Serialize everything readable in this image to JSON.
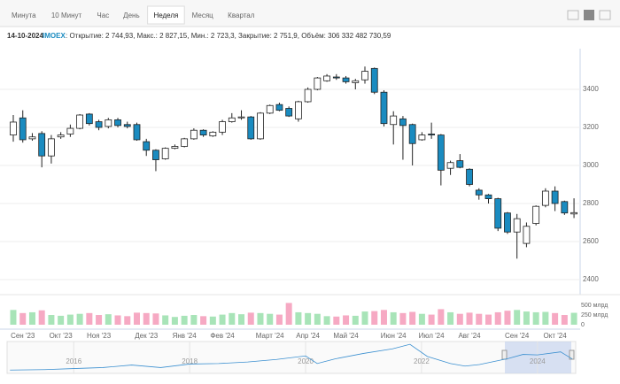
{
  "tabs": [
    "Минута",
    "10 Минут",
    "Час",
    "День",
    "Неделя",
    "Месяц",
    "Квартал"
  ],
  "selected_tab": 4,
  "info": {
    "date": "14-10-2024",
    "ticker": "IMOEX",
    "text": ": Открытие: 2 744,93, Макс.: 2 827,15, Мин.: 2 723,3, Закрытие: 2 751,9, Объём: 306 332 482 730,59"
  },
  "chart_data": [
    {
      "type": "candlestick",
      "categories": [
        null,
        "Сен '23",
        null,
        null,
        null,
        "Окт '23",
        null,
        null,
        null,
        "Ноя '23",
        null,
        null,
        null,
        null,
        "Дек '23",
        null,
        null,
        null,
        "Янв '24",
        null,
        null,
        null,
        "Фев '24",
        null,
        null,
        null,
        null,
        "Март '24",
        null,
        null,
        null,
        "Апр '24",
        null,
        null,
        null,
        "Май '24",
        null,
        null,
        null,
        null,
        "Июн '24",
        null,
        null,
        null,
        "Июл '24",
        null,
        null,
        null,
        "Авг '24",
        null,
        null,
        null,
        null,
        "Сен '24",
        null,
        null,
        null,
        "Окт '24",
        null,
        null
      ],
      "open": [
        3160,
        3250,
        3140,
        3168,
        3050,
        3150,
        3165,
        3195,
        3270,
        3230,
        3205,
        3240,
        3215,
        3215,
        3125,
        3080,
        3035,
        3090,
        3100,
        3140,
        3185,
        3155,
        3175,
        3230,
        3250,
        3255,
        3140,
        3275,
        3320,
        3300,
        3245,
        3335,
        3400,
        3445,
        3465,
        3460,
        3435,
        3450,
        3510,
        3385,
        3215,
        3245,
        3215,
        3135,
        3165,
        3160,
        2985,
        3025,
        2980,
        2870,
        2845,
        2825,
        2750,
        2650,
        2590,
        2695,
        2790,
        2865,
        2810,
        2744.93
      ],
      "high": [
        3265,
        3290,
        3170,
        3180,
        3160,
        3175,
        3215,
        3270,
        3275,
        3240,
        3250,
        3250,
        3230,
        3225,
        3140,
        3085,
        3095,
        3110,
        3145,
        3195,
        3190,
        3180,
        3240,
        3275,
        3290,
        3260,
        3280,
        3320,
        3330,
        3310,
        3340,
        3410,
        3465,
        3480,
        3480,
        3470,
        3455,
        3520,
        3515,
        3395,
        3285,
        3260,
        3220,
        3175,
        3225,
        3165,
        3025,
        3060,
        2985,
        2880,
        2850,
        2830,
        2755,
        2745,
        2700,
        2790,
        2880,
        2890,
        2815,
        2827.15
      ],
      "low": [
        3125,
        3120,
        3130,
        2990,
        3010,
        3140,
        3150,
        3190,
        3210,
        3185,
        3195,
        3200,
        3195,
        3130,
        3050,
        2970,
        3030,
        3085,
        3095,
        3135,
        3150,
        3150,
        3160,
        3225,
        3240,
        3135,
        3135,
        3270,
        3285,
        3255,
        3230,
        3330,
        3395,
        3440,
        3450,
        3430,
        3400,
        3430,
        3375,
        3205,
        3110,
        3030,
        3000,
        3130,
        3140,
        2895,
        2950,
        2985,
        2890,
        2820,
        2800,
        2655,
        2640,
        2510,
        2570,
        2685,
        2780,
        2760,
        2740,
        2723.3
      ],
      "close": [
        3228,
        3135,
        3150,
        3050,
        3140,
        3160,
        3195,
        3265,
        3220,
        3200,
        3240,
        3210,
        3205,
        3135,
        3080,
        3030,
        3090,
        3100,
        3140,
        3185,
        3160,
        3175,
        3230,
        3250,
        3255,
        3140,
        3275,
        3315,
        3290,
        3260,
        3335,
        3400,
        3460,
        3470,
        3460,
        3440,
        3445,
        3495,
        3385,
        3220,
        3260,
        3210,
        3115,
        3160,
        3160,
        2975,
        3015,
        2990,
        2900,
        2845,
        2825,
        2670,
        2650,
        2720,
        2680,
        2785,
        2865,
        2800,
        2750,
        2751.9
      ],
      "up_color": "#ffffff",
      "down_color": "#1a8bc0",
      "ylim": [
        2330,
        3600
      ],
      "yticks": [
        2400,
        2600,
        2800,
        3000,
        3200,
        3400
      ],
      "grid": true
    },
    {
      "type": "bar",
      "values": [
        380,
        300,
        320,
        370,
        250,
        230,
        260,
        280,
        300,
        250,
        270,
        240,
        220,
        310,
        300,
        290,
        240,
        200,
        230,
        250,
        220,
        210,
        260,
        300,
        270,
        310,
        300,
        280,
        260,
        560,
        320,
        300,
        280,
        220,
        210,
        240,
        230,
        340,
        350,
        380,
        320,
        300,
        330,
        280,
        260,
        400,
        320,
        280,
        310,
        280,
        260,
        320,
        360,
        380,
        340,
        320,
        330,
        300,
        250,
        306.33
      ],
      "up_color": "#a8e4b8",
      "down_color": "#f6a9c3",
      "ylim": [
        0,
        660
      ],
      "yticks": [
        0,
        {
          "value": 250,
          "label": "250 млрд"
        },
        {
          "value": 500,
          "label": "500 млрд"
        }
      ]
    },
    {
      "type": "line",
      "x": [
        2014.9,
        2015.5,
        2016,
        2016.5,
        2017,
        2017.5,
        2018,
        2018.5,
        2019,
        2019.5,
        2020,
        2020.2,
        2020.5,
        2021,
        2021.5,
        2021.8,
        2022.1,
        2022.5,
        2022.75,
        2023,
        2023.5,
        2023.75,
        2024,
        2024.4,
        2024.6
      ],
      "values": [
        1650,
        1700,
        1800,
        1900,
        2150,
        1900,
        2250,
        2300,
        2450,
        2700,
        3050,
        2300,
        2750,
        3300,
        3750,
        4200,
        3000,
        2300,
        2050,
        2200,
        2800,
        3200,
        3150,
        3450,
        2750
      ],
      "color": "#3a8fd0",
      "xlim": [
        2014.85,
        2024.66
      ],
      "ylim": [
        1500,
        4300
      ],
      "xticks": [
        2016,
        2018,
        2020,
        2022,
        2024
      ]
    }
  ]
}
